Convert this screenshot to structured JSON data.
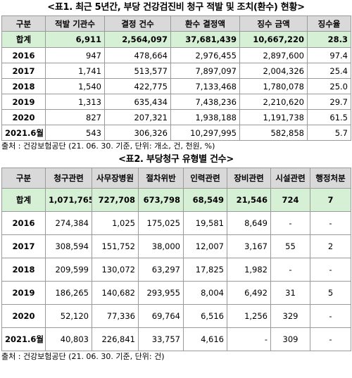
{
  "table1": {
    "title": "<표1. 최근 5년간, 부당 건강검진비 청구 적발 및 조치(환수) 현황>",
    "headers": [
      "구분",
      "적발 기관수",
      "결정 건수",
      "환수 결정액",
      "징수 금액",
      "징수율"
    ],
    "total": [
      "합계",
      "6,911",
      "2,564,097",
      "37,681,439",
      "10,667,220",
      "28.3"
    ],
    "rows": [
      [
        "2016",
        "947",
        "478,664",
        "2,976,455",
        "2,897,600",
        "97.4"
      ],
      [
        "2017",
        "1,741",
        "513,577",
        "7,897,097",
        "2,004,326",
        "25.4"
      ],
      [
        "2018",
        "1,540",
        "422,775",
        "7,133,468",
        "1,780,078",
        "25.0"
      ],
      [
        "2019",
        "1,313",
        "635,434",
        "7,438,236",
        "2,210,620",
        "29.7"
      ],
      [
        "2020",
        "827",
        "207,321",
        "1,938,188",
        "1,191,738",
        "61.5"
      ],
      [
        "2021.6월",
        "543",
        "306,326",
        "10,297,995",
        "582,858",
        "5.7"
      ]
    ],
    "source": "출처 : 건강보험공단 (21. 06. 30. 기준, 단위: 개소, 건, 천원, %)"
  },
  "table2": {
    "title": "<표2. 부당청구 유형별 건수>",
    "headers": [
      "구분",
      "청구관련",
      "사무장병원",
      "절차위반",
      "인력관련",
      "장비관련",
      "시설관련",
      "행정처분"
    ],
    "total": [
      "합계",
      "1,071,765",
      "727,708",
      "673,798",
      "68,549",
      "21,546",
      "724",
      "7"
    ],
    "rows": [
      [
        "2016",
        "274,384",
        "1,025",
        "175,025",
        "19,581",
        "8,649",
        "-",
        "-"
      ],
      [
        "2017",
        "308,594",
        "151,752",
        "38,000",
        "12,007",
        "3,167",
        "55",
        "2"
      ],
      [
        "2018",
        "209,599",
        "130,072",
        "63,297",
        "17,825",
        "1,982",
        "-",
        "-"
      ],
      [
        "2019",
        "186,265",
        "140,682",
        "293,955",
        "8,004",
        "6,492",
        "31",
        "5"
      ],
      [
        "2020",
        "52,120",
        "77,336",
        "69,764",
        "6,516",
        "1,256",
        "329",
        "-"
      ],
      [
        "2021.6월",
        "40,803",
        "226,841",
        "33,757",
        "4,616",
        "-",
        "309",
        "-"
      ]
    ],
    "source": "출처 : 건강보험공단 (21. 06. 30. 기준, 단위: 건)"
  }
}
